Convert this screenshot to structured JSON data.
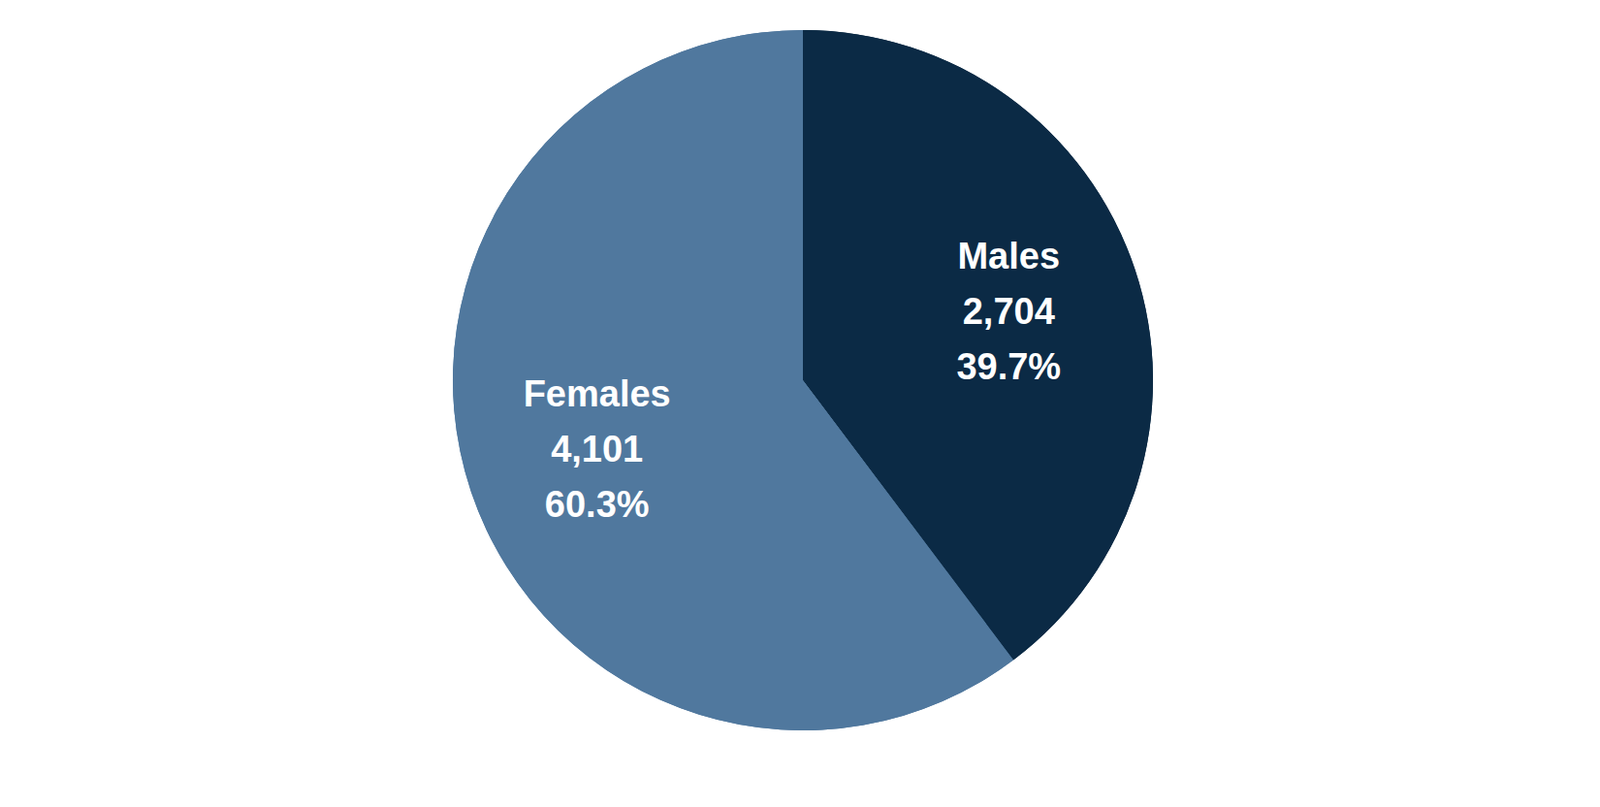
{
  "chart_data": {
    "type": "pie",
    "categories": [
      "Males",
      "Females"
    ],
    "values": [
      2704,
      4101
    ],
    "value_labels": [
      "2,704",
      "4,101"
    ],
    "percentages": [
      39.7,
      60.3
    ],
    "percent_labels": [
      "39.7%",
      "60.3%"
    ],
    "colors": [
      "#0b2a45",
      "#50789e"
    ],
    "data_labels": true
  }
}
